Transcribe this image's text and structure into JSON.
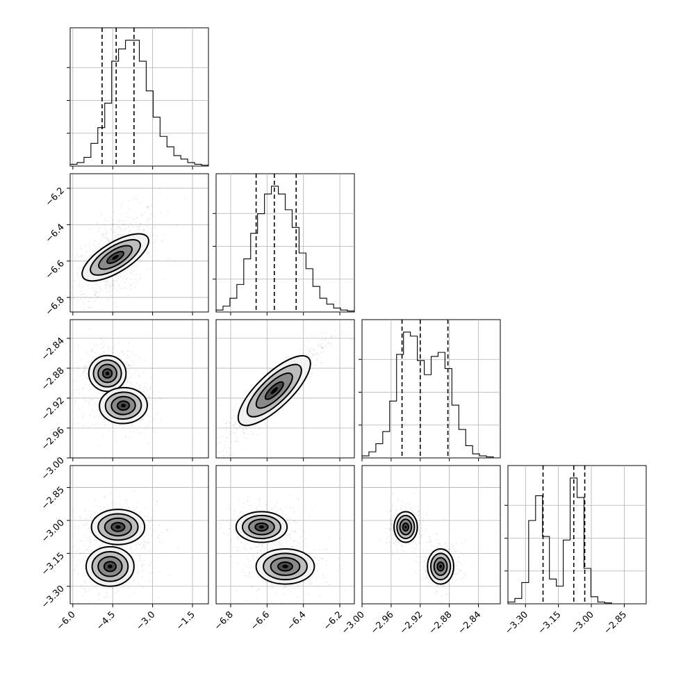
{
  "chart_data": {
    "type": "corner",
    "grid": true,
    "params": [
      {
        "xticks": [
          "−6.0",
          "−4.5",
          "−3.0",
          "−1.5"
        ],
        "xtick_values": [
          -6.0,
          -4.5,
          -3.0,
          -1.5
        ],
        "yticks": [
          "−6.2",
          "−6.4",
          "−6.6",
          "−6.8"
        ],
        "ytick_values": [
          -6.2,
          -6.4,
          -6.6,
          -6.8
        ],
        "range": [
          -6.1,
          -0.9
        ],
        "range_y": [
          -6.12,
          -6.88
        ]
      },
      {
        "xticks": [
          "−6.8",
          "−6.6",
          "−6.4",
          "−6.2"
        ],
        "xtick_values": [
          -6.8,
          -6.6,
          -6.4,
          -6.2
        ],
        "yticks": [
          "−2.84",
          "−2.88",
          "−2.92",
          "−2.96",
          "−3.00"
        ],
        "ytick_values": [
          -2.84,
          -2.88,
          -2.92,
          -2.96,
          -3.0
        ],
        "range": [
          -6.88,
          -6.12
        ]
      },
      {
        "xticks": [
          "−3.00",
          "−2.96",
          "−2.92",
          "−2.88",
          "−2.84"
        ],
        "xtick_values": [
          -3.0,
          -2.96,
          -2.92,
          -2.88,
          -2.84
        ],
        "yticks": [
          "−2.85",
          "−3.00",
          "−3.15",
          "−3.30"
        ],
        "ytick_values": [
          -2.85,
          -3.0,
          -3.15,
          -3.3
        ],
        "range": [
          -3.0,
          -2.81
        ]
      },
      {
        "xticks": [
          "−3.30",
          "−3.15",
          "−3.00",
          "−2.85"
        ],
        "xtick_values": [
          -3.3,
          -3.15,
          -3.0,
          -2.85
        ],
        "range": [
          -3.38,
          -2.75
        ],
        "range_y": [
          -2.75,
          -3.38
        ]
      }
    ],
    "ranges_y": [
      null,
      [
        -6.12,
        -6.88
      ],
      [
        -2.815,
        -3.0
      ],
      [
        -2.75,
        -3.38
      ]
    ],
    "diagonal": [
      {
        "bins": [
          -6.0,
          -5.0
        ],
        "counts": [
          1,
          2,
          5,
          13,
          22,
          36,
          60,
          67,
          72,
          72,
          60,
          43,
          28,
          17,
          11,
          6,
          4,
          2,
          1,
          0.5
        ],
        "quantiles": [
          -4.9,
          -4.37,
          -3.7
        ]
      },
      {
        "counts": [
          1,
          3,
          7,
          14,
          27,
          40,
          50,
          60,
          64,
          60,
          52,
          43,
          30,
          22,
          13,
          7,
          4,
          2,
          1,
          0.5
        ],
        "quantiles": [
          -6.66,
          -6.56,
          -6.44
        ]
      },
      {
        "counts": [
          1,
          3,
          7,
          13,
          28,
          51,
          62,
          60,
          48,
          41,
          50,
          52,
          44,
          26,
          14,
          6,
          2,
          1,
          0.5,
          0
        ],
        "quantiles": [
          -2.945,
          -2.92,
          -2.882
        ]
      },
      {
        "counts": [
          1,
          3,
          12,
          47,
          61,
          38,
          14,
          10,
          36,
          71,
          60,
          20,
          4,
          1,
          0.5,
          0,
          0,
          0,
          0,
          0
        ],
        "quantiles": [
          -3.22,
          -3.08,
          -3.03
        ]
      }
    ],
    "pairs": [
      {
        "row": 1,
        "col": 0,
        "modes": [
          {
            "x": -4.4,
            "y": -6.58,
            "sx": 0.55,
            "sy": 0.09,
            "rho": 0.55,
            "w": 1
          }
        ]
      },
      {
        "row": 2,
        "col": 0,
        "modes": [
          {
            "x": -4.7,
            "y": -2.887,
            "sx": 0.35,
            "sy": 0.012,
            "rho": 0.0,
            "w": 0.52
          },
          {
            "x": -4.1,
            "y": -2.93,
            "sx": 0.45,
            "sy": 0.012,
            "rho": 0.1,
            "w": 0.48
          }
        ]
      },
      {
        "row": 2,
        "col": 1,
        "modes": [
          {
            "x": -6.56,
            "y": -2.91,
            "sx": 0.1,
            "sy": 0.025,
            "rho": 0.93,
            "w": 1
          }
        ]
      },
      {
        "row": 3,
        "col": 0,
        "modes": [
          {
            "x": -4.3,
            "y": -3.03,
            "sx": 0.5,
            "sy": 0.04,
            "rho": 0.0,
            "w": 0.5
          },
          {
            "x": -4.6,
            "y": -3.21,
            "sx": 0.45,
            "sy": 0.045,
            "rho": 0.0,
            "w": 0.5
          }
        ]
      },
      {
        "row": 3,
        "col": 1,
        "modes": [
          {
            "x": -6.63,
            "y": -3.03,
            "sx": 0.07,
            "sy": 0.035,
            "rho": 0.0,
            "w": 0.5
          },
          {
            "x": -6.5,
            "y": -3.21,
            "sx": 0.08,
            "sy": 0.04,
            "rho": 0.0,
            "w": 0.5
          }
        ]
      },
      {
        "row": 3,
        "col": 2,
        "modes": [
          {
            "x": -2.94,
            "y": -3.03,
            "sx": 0.008,
            "sy": 0.035,
            "rho": 0.0,
            "w": 0.5
          },
          {
            "x": -2.892,
            "y": -3.21,
            "sx": 0.009,
            "sy": 0.04,
            "rho": 0.0,
            "w": 0.5
          }
        ]
      }
    ]
  }
}
